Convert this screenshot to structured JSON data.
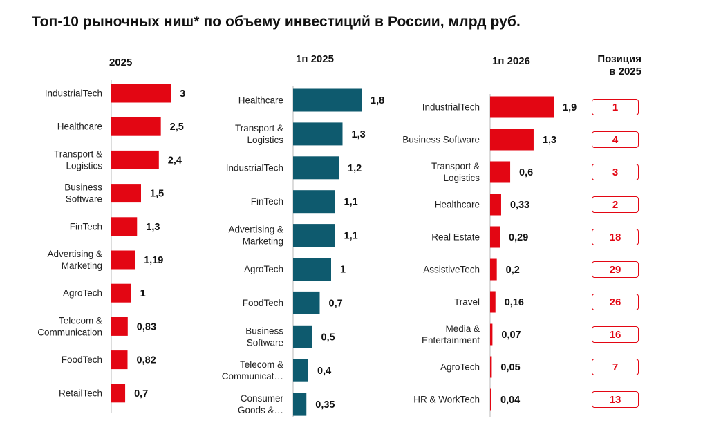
{
  "title": "Топ-10 рыночных ниш* по объему инвестиций в России, млрд руб.",
  "colors": {
    "red": "#e30613",
    "teal": "#0e5a6e"
  },
  "positions_header": {
    "line1": "Позиция",
    "line2": "в 2025"
  },
  "chart_data": [
    {
      "type": "bar",
      "orientation": "horizontal",
      "title": "2025",
      "color": "#e30613",
      "categories": [
        "IndustrialTech",
        "Healthcare",
        "Transport & Logistics",
        "Business Software",
        "FinTech",
        "Advertising & Marketing",
        "AgroTech",
        "Telecom & Communication",
        "FoodTech",
        "RetailTech"
      ],
      "category_lines": [
        [
          "IndustrialTech"
        ],
        [
          "Healthcare"
        ],
        [
          "Transport &",
          "Logistics"
        ],
        [
          "Business",
          "Software"
        ],
        [
          "FinTech"
        ],
        [
          "Advertising &",
          "Marketing"
        ],
        [
          "AgroTech"
        ],
        [
          "Telecom &",
          "Communication"
        ],
        [
          "FoodTech"
        ],
        [
          "RetailTech"
        ]
      ],
      "values": [
        3,
        2.5,
        2.4,
        1.5,
        1.3,
        1.19,
        1,
        0.83,
        0.82,
        0.7
      ],
      "value_labels": [
        "3",
        "2,5",
        "2,4",
        "1,5",
        "1,3",
        "1,19",
        "1",
        "0,83",
        "0,82",
        "0,7"
      ]
    },
    {
      "type": "bar",
      "orientation": "horizontal",
      "title": "1п 2025",
      "color": "#0e5a6e",
      "categories": [
        "Healthcare",
        "Transport & Logistics",
        "IndustrialTech",
        "FinTech",
        "Advertising & Marketing",
        "AgroTech",
        "FoodTech",
        "Business Software",
        "Telecom & Communicat…",
        "Consumer Goods &…"
      ],
      "category_lines": [
        [
          "Healthcare"
        ],
        [
          "Transport &",
          "Logistics"
        ],
        [
          "IndustrialTech"
        ],
        [
          "FinTech"
        ],
        [
          "Advertising &",
          "Marketing"
        ],
        [
          "AgroTech"
        ],
        [
          "FoodTech"
        ],
        [
          "Business",
          "Software"
        ],
        [
          "Telecom &",
          "Communicat…"
        ],
        [
          "Consumer",
          "Goods &…"
        ]
      ],
      "values": [
        1.8,
        1.3,
        1.2,
        1.1,
        1.1,
        1,
        0.7,
        0.5,
        0.4,
        0.35
      ],
      "value_labels": [
        "1,8",
        "1,3",
        "1,2",
        "1,1",
        "1,1",
        "1",
        "0,7",
        "0,5",
        "0,4",
        "0,35"
      ]
    },
    {
      "type": "bar",
      "orientation": "horizontal",
      "title": "1п 2026",
      "color": "#e30613",
      "categories": [
        "IndustrialTech",
        "Business Software",
        "Transport & Logistics",
        "Healthcare",
        "Real Estate",
        "AssistiveTech",
        "Travel",
        "Media & Entertainment",
        "AgroTech",
        "HR & WorkTech"
      ],
      "category_lines": [
        [
          "IndustrialTech"
        ],
        [
          "Business Software"
        ],
        [
          "Transport &",
          "Logistics"
        ],
        [
          "Healthcare"
        ],
        [
          "Real Estate"
        ],
        [
          "AssistiveTech"
        ],
        [
          "Travel"
        ],
        [
          "Media &",
          "Entertainment"
        ],
        [
          "AgroTech"
        ],
        [
          "HR & WorkTech"
        ]
      ],
      "values": [
        1.9,
        1.3,
        0.6,
        0.33,
        0.29,
        0.2,
        0.16,
        0.07,
        0.05,
        0.04
      ],
      "value_labels": [
        "1,9",
        "1,3",
        "0,6",
        "0,33",
        "0,29",
        "0,2",
        "0,16",
        "0,07",
        "0,05",
        "0,04"
      ],
      "position_2025": [
        "1",
        "4",
        "3",
        "2",
        "18",
        "29",
        "26",
        "16",
        "7",
        "13"
      ]
    }
  ]
}
